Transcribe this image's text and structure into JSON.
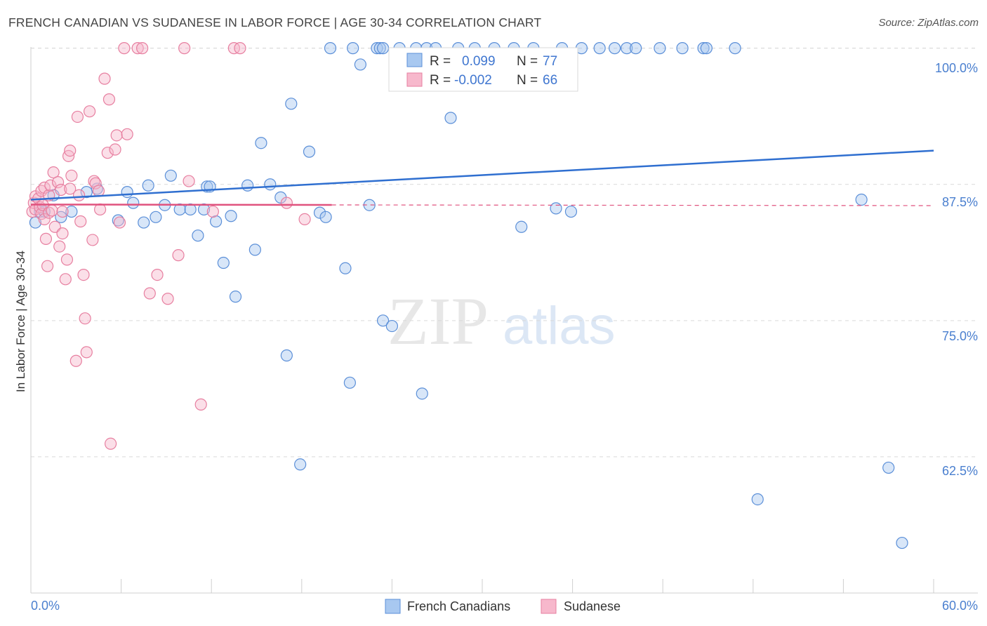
{
  "title": "FRENCH CANADIAN VS SUDANESE IN LABOR FORCE | AGE 30-34 CORRELATION CHART",
  "source": "Source: ZipAtlas.com",
  "watermark": {
    "zip": "ZIP",
    "atlas": "atlas"
  },
  "colors": {
    "blue_fill": "#a8c8f0",
    "blue_stroke": "#5b8fd8",
    "blue_line": "#2f6fd0",
    "pink_fill": "#f7b8cc",
    "pink_stroke": "#e77fa0",
    "pink_line": "#e0527e",
    "grid": "#d9d9d9",
    "axis_text": "#4a7fcf"
  },
  "legend": {
    "series": [
      {
        "r_label": "R =",
        "r_value": "0.099",
        "n_label": "N =",
        "n_value": "77"
      },
      {
        "r_label": "R =",
        "r_value": "-0.002",
        "n_label": "N =",
        "n_value": "66"
      }
    ]
  },
  "bottom_legend": [
    "French Canadians",
    "Sudanese"
  ],
  "chart_data": {
    "type": "scatter",
    "title": "FRENCH CANADIAN VS SUDANESE IN LABOR FORCE | AGE 30-34 CORRELATION CHART",
    "xlabel": "",
    "ylabel": "In Labor Force | Age 30-34",
    "xlim": [
      0,
      60
    ],
    "ylim": [
      50,
      101.2
    ],
    "x_tick_labels": {
      "0": "0.0%",
      "60": "60.0%"
    },
    "y_ticks": [
      62.5,
      75.0,
      87.5,
      100.0
    ],
    "y_tick_labels": [
      "62.5%",
      "75.0%",
      "87.5%",
      "100.0%"
    ],
    "grid": true,
    "series": [
      {
        "name": "French Canadians",
        "trend": {
          "x0": 0,
          "y0": 86.1,
          "x1": 60,
          "y1": 90.6
        },
        "points": [
          [
            0.3,
            84.0
          ],
          [
            0.6,
            85.0
          ],
          [
            0.9,
            85.0
          ],
          [
            1.5,
            86.5
          ],
          [
            2.0,
            84.5
          ],
          [
            2.7,
            85.0
          ],
          [
            3.7,
            86.8
          ],
          [
            4.4,
            87.1
          ],
          [
            5.8,
            84.2
          ],
          [
            6.4,
            86.8
          ],
          [
            6.8,
            85.8
          ],
          [
            7.5,
            84.0
          ],
          [
            7.8,
            87.4
          ],
          [
            8.3,
            84.5
          ],
          [
            8.9,
            85.6
          ],
          [
            9.3,
            88.3
          ],
          [
            9.9,
            85.2
          ],
          [
            10.6,
            85.2
          ],
          [
            11.1,
            82.8
          ],
          [
            11.5,
            85.2
          ],
          [
            11.7,
            87.3
          ],
          [
            11.9,
            87.3
          ],
          [
            12.3,
            84.1
          ],
          [
            12.8,
            80.3
          ],
          [
            13.3,
            84.6
          ],
          [
            13.6,
            77.2
          ],
          [
            14.4,
            87.4
          ],
          [
            14.9,
            81.5
          ],
          [
            15.3,
            91.3
          ],
          [
            15.9,
            87.5
          ],
          [
            16.6,
            86.3
          ],
          [
            17.0,
            71.8
          ],
          [
            17.3,
            94.9
          ],
          [
            17.9,
            61.8
          ],
          [
            18.5,
            90.5
          ],
          [
            19.2,
            84.9
          ],
          [
            19.6,
            84.5
          ],
          [
            19.9,
            100.0
          ],
          [
            20.9,
            79.8
          ],
          [
            21.2,
            69.3
          ],
          [
            21.4,
            100.0
          ],
          [
            21.9,
            98.5
          ],
          [
            22.5,
            85.6
          ],
          [
            23.0,
            100.0
          ],
          [
            23.2,
            100.0
          ],
          [
            23.4,
            100.0
          ],
          [
            23.4,
            75.0
          ],
          [
            24.0,
            74.5
          ],
          [
            24.5,
            100.0
          ],
          [
            25.6,
            100.0
          ],
          [
            26.0,
            68.3
          ],
          [
            26.3,
            100.0
          ],
          [
            26.9,
            100.0
          ],
          [
            27.9,
            93.6
          ],
          [
            28.4,
            100.0
          ],
          [
            29.5,
            100.0
          ],
          [
            30.8,
            100.0
          ],
          [
            32.1,
            100.0
          ],
          [
            32.6,
            83.6
          ],
          [
            33.4,
            100.0
          ],
          [
            34.9,
            85.3
          ],
          [
            35.3,
            100.0
          ],
          [
            35.9,
            85.0
          ],
          [
            36.6,
            100.0
          ],
          [
            37.8,
            100.0
          ],
          [
            38.8,
            100.0
          ],
          [
            39.6,
            100.0
          ],
          [
            40.2,
            100.0
          ],
          [
            41.8,
            100.0
          ],
          [
            43.3,
            100.0
          ],
          [
            44.7,
            100.0
          ],
          [
            44.9,
            100.0
          ],
          [
            46.8,
            100.0
          ],
          [
            48.3,
            58.6
          ],
          [
            55.2,
            86.1
          ],
          [
            57.0,
            61.5
          ],
          [
            57.9,
            54.6
          ]
        ]
      },
      {
        "name": "Sudanese",
        "trend": {
          "x0": 0,
          "y0": 85.65,
          "x1": 60,
          "y1": 85.55,
          "solid_until_x": 20
        },
        "points": [
          [
            0.1,
            85.0
          ],
          [
            0.2,
            85.8
          ],
          [
            0.3,
            86.4
          ],
          [
            0.3,
            85.2
          ],
          [
            0.5,
            86.2
          ],
          [
            0.6,
            85.4
          ],
          [
            0.7,
            86.9
          ],
          [
            0.7,
            84.8
          ],
          [
            0.8,
            85.6
          ],
          [
            0.9,
            87.2
          ],
          [
            0.9,
            84.3
          ],
          [
            1.0,
            82.5
          ],
          [
            1.1,
            80.0
          ],
          [
            1.2,
            86.5
          ],
          [
            1.2,
            84.9
          ],
          [
            1.3,
            87.4
          ],
          [
            1.4,
            85.1
          ],
          [
            1.5,
            88.6
          ],
          [
            1.6,
            83.6
          ],
          [
            1.8,
            87.7
          ],
          [
            1.9,
            81.8
          ],
          [
            2.0,
            87.0
          ],
          [
            2.1,
            85.0
          ],
          [
            2.1,
            83.0
          ],
          [
            2.3,
            78.8
          ],
          [
            2.4,
            80.6
          ],
          [
            2.5,
            90.1
          ],
          [
            2.6,
            90.6
          ],
          [
            2.6,
            87.1
          ],
          [
            2.7,
            88.3
          ],
          [
            3.0,
            71.3
          ],
          [
            3.1,
            93.7
          ],
          [
            3.2,
            86.5
          ],
          [
            3.3,
            84.1
          ],
          [
            3.5,
            79.2
          ],
          [
            3.6,
            75.2
          ],
          [
            3.7,
            72.1
          ],
          [
            3.9,
            94.2
          ],
          [
            4.1,
            82.4
          ],
          [
            4.2,
            87.8
          ],
          [
            4.3,
            87.6
          ],
          [
            4.5,
            86.9
          ],
          [
            4.6,
            85.2
          ],
          [
            4.9,
            97.2
          ],
          [
            5.1,
            90.4
          ],
          [
            5.2,
            95.3
          ],
          [
            5.3,
            63.7
          ],
          [
            5.6,
            90.7
          ],
          [
            5.7,
            92.0
          ],
          [
            5.9,
            84.0
          ],
          [
            6.2,
            100.0
          ],
          [
            6.4,
            92.1
          ],
          [
            7.1,
            100.0
          ],
          [
            7.4,
            100.0
          ],
          [
            7.9,
            77.5
          ],
          [
            8.4,
            79.2
          ],
          [
            9.1,
            77.0
          ],
          [
            9.8,
            81.0
          ],
          [
            10.2,
            100.0
          ],
          [
            10.5,
            87.8
          ],
          [
            11.3,
            67.3
          ],
          [
            12.1,
            85.0
          ],
          [
            13.5,
            100.0
          ],
          [
            13.9,
            100.0
          ],
          [
            17.0,
            85.8
          ],
          [
            18.2,
            84.3
          ]
        ]
      }
    ]
  }
}
